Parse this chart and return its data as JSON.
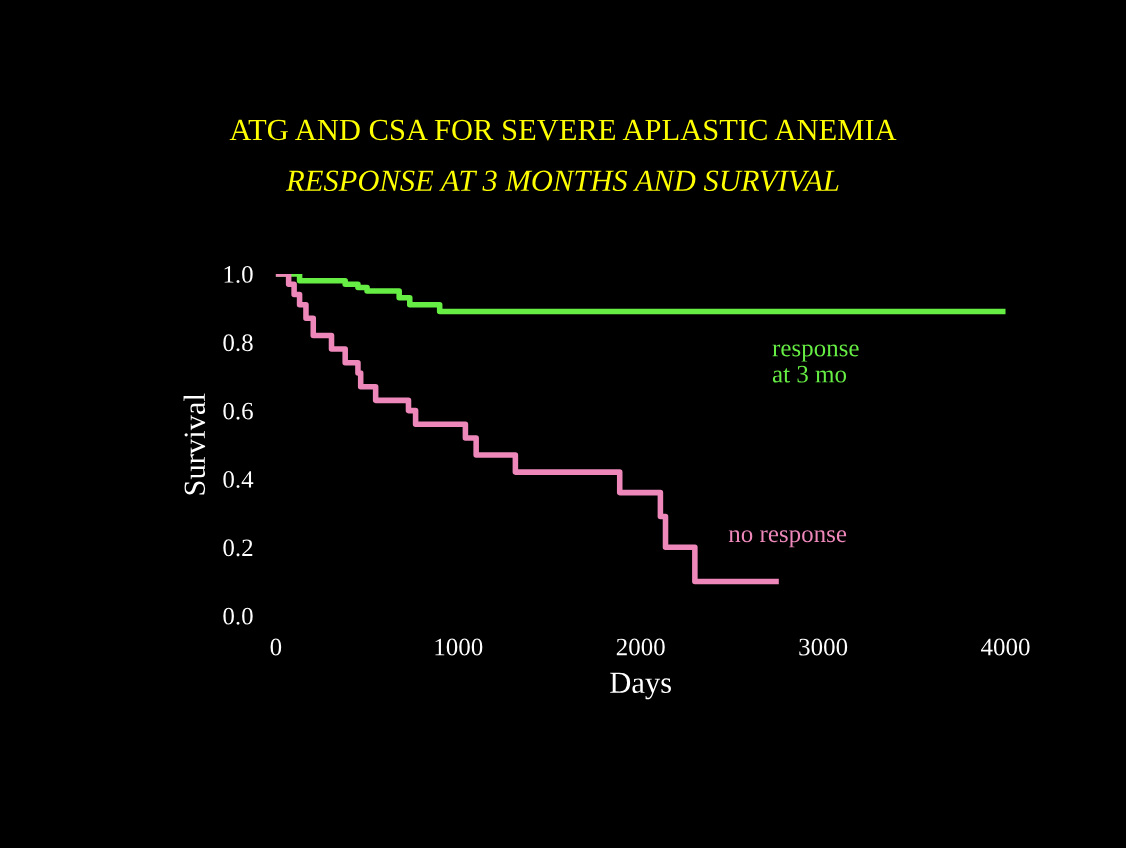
{
  "chart_data": {
    "type": "step",
    "title": "ATG AND CSA FOR SEVERE APLASTIC ANEMIA",
    "subtitle": "RESPONSE AT 3 MONTHS AND SURVIVAL",
    "xlabel": "Days",
    "ylabel": "Survival",
    "xlim": [
      0,
      4000
    ],
    "xticks": [
      0,
      1000,
      2000,
      3000,
      4000
    ],
    "ylim": [
      0,
      1.0
    ],
    "yticks": [
      {
        "value": 0,
        "label": "0.0"
      },
      {
        "value": 0.2,
        "label": "0.2"
      },
      {
        "value": 0.4,
        "label": "0.4"
      },
      {
        "value": 0.6,
        "label": "0.6"
      },
      {
        "value": 0.8,
        "label": "0.8"
      },
      {
        "value": 1.0,
        "label": "1.0"
      }
    ],
    "grid": false,
    "legend": false,
    "series": [
      {
        "name": "response\nat 3 mo",
        "color": "#66ee44",
        "x": [
          0,
          130,
          380,
          450,
          500,
          676,
          734,
          898,
          4000
        ],
        "values": [
          1.0,
          0.98,
          0.97,
          0.96,
          0.95,
          0.93,
          0.91,
          0.89,
          0.89
        ]
      },
      {
        "name": "no response",
        "color": "#ee88bb",
        "x": [
          0,
          70,
          100,
          130,
          165,
          205,
          305,
          380,
          450,
          465,
          547,
          727,
          766,
          1039,
          1098,
          1313,
          1885,
          2108,
          2136,
          2297,
          2742
        ],
        "values": [
          1.0,
          0.97,
          0.94,
          0.91,
          0.87,
          0.82,
          0.78,
          0.74,
          0.71,
          0.67,
          0.63,
          0.6,
          0.56,
          0.52,
          0.47,
          0.42,
          0.36,
          0.29,
          0.2,
          0.1,
          0.1
        ]
      }
    ]
  }
}
